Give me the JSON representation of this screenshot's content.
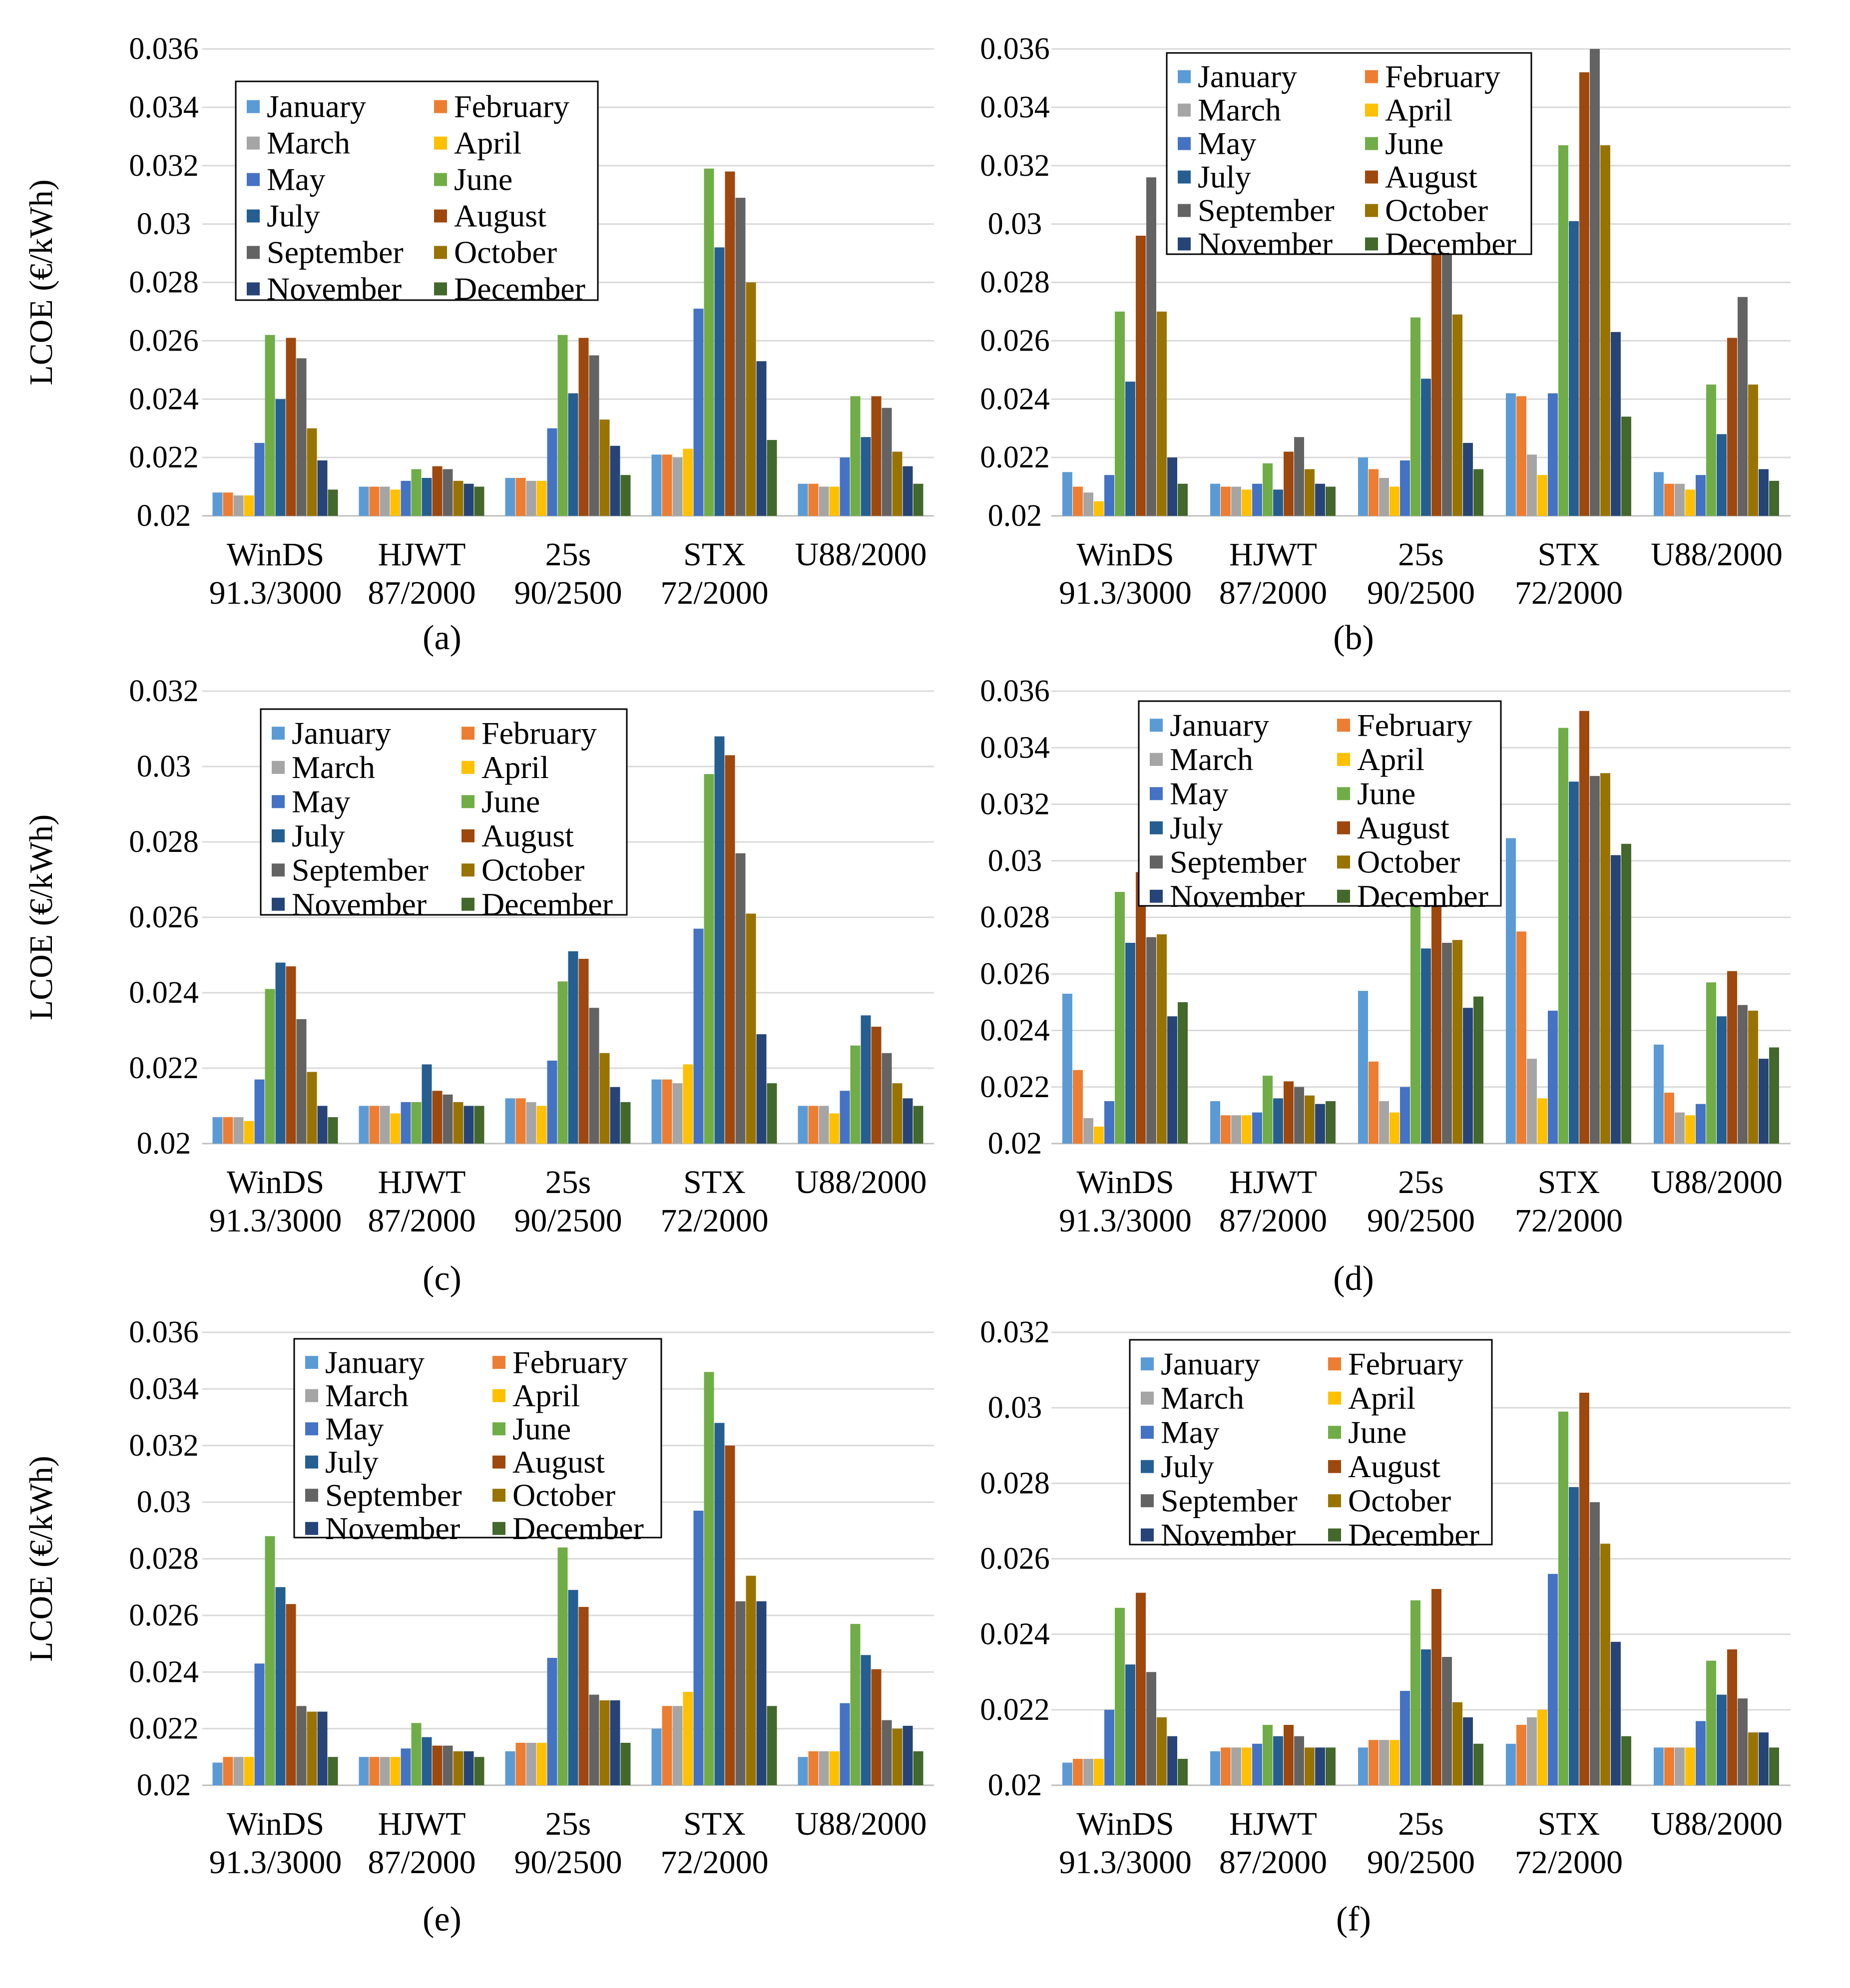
{
  "figure": {
    "y_axis_label": "LCOE (€/kWh)"
  },
  "months": [
    "January",
    "February",
    "March",
    "April",
    "May",
    "June",
    "July",
    "August",
    "September",
    "October",
    "November",
    "December"
  ],
  "month_colors": [
    "#5B9BD5",
    "#ED7D31",
    "#A5A5A5",
    "#FFC000",
    "#4472C4",
    "#70AD47",
    "#255E91",
    "#9E480E",
    "#636363",
    "#997300",
    "#264478",
    "#43682B"
  ],
  "turbines": [
    {
      "line1": "WinDS",
      "line2": "91.3/3000"
    },
    {
      "line1": "HJWT",
      "line2": "87/2000"
    },
    {
      "line1": "25s",
      "line2": "90/2500"
    },
    {
      "line1": "STX",
      "line2": "72/2000"
    },
    {
      "line1": "U88/2000",
      "line2": ""
    }
  ],
  "chart_data": [
    {
      "type": "bar",
      "panel": "(a)",
      "categories": [
        "WinDS 91.3/3000",
        "HJWT 87/2000",
        "25s 90/2500",
        "STX 72/2000",
        "U88/2000"
      ],
      "ylim": [
        0.02,
        0.036
      ],
      "yticks": [
        "0.02",
        "0.022",
        "0.024",
        "0.026",
        "0.028",
        "0.03",
        "0.032",
        "0.034",
        "0.036"
      ],
      "ylabel": "LCOE (€/kWh)",
      "series": [
        {
          "name": "January",
          "values": [
            0.0208,
            0.021,
            0.0213,
            0.0221,
            0.0211
          ]
        },
        {
          "name": "February",
          "values": [
            0.0208,
            0.021,
            0.0213,
            0.0221,
            0.0211
          ]
        },
        {
          "name": "March",
          "values": [
            0.0207,
            0.021,
            0.0212,
            0.022,
            0.021
          ]
        },
        {
          "name": "April",
          "values": [
            0.0207,
            0.0209,
            0.0212,
            0.0223,
            0.021
          ]
        },
        {
          "name": "May",
          "values": [
            0.0225,
            0.0212,
            0.023,
            0.0271,
            0.022
          ]
        },
        {
          "name": "June",
          "values": [
            0.0262,
            0.0216,
            0.0262,
            0.0319,
            0.0241
          ]
        },
        {
          "name": "July",
          "values": [
            0.024,
            0.0213,
            0.0242,
            0.0292,
            0.0227
          ]
        },
        {
          "name": "August",
          "values": [
            0.0261,
            0.0217,
            0.0261,
            0.0318,
            0.0241
          ]
        },
        {
          "name": "September",
          "values": [
            0.0254,
            0.0216,
            0.0255,
            0.0309,
            0.0237
          ]
        },
        {
          "name": "October",
          "values": [
            0.023,
            0.0212,
            0.0233,
            0.028,
            0.0222
          ]
        },
        {
          "name": "November",
          "values": [
            0.0219,
            0.0211,
            0.0224,
            0.0253,
            0.0217
          ]
        },
        {
          "name": "December",
          "values": [
            0.0209,
            0.021,
            0.0214,
            0.0226,
            0.0211
          ]
        }
      ]
    },
    {
      "type": "bar",
      "panel": "(b)",
      "categories": [
        "WinDS 91.3/3000",
        "HJWT 87/2000",
        "25s 90/2500",
        "STX 72/2000",
        "U88/2000"
      ],
      "ylim": [
        0.02,
        0.036
      ],
      "yticks": [
        "0.02",
        "0.022",
        "0.024",
        "0.026",
        "0.028",
        "0.03",
        "0.032",
        "0.034",
        "0.036"
      ],
      "ylabel": "",
      "series": [
        {
          "name": "January",
          "values": [
            0.0215,
            0.0211,
            0.022,
            0.0242,
            0.0215
          ]
        },
        {
          "name": "February",
          "values": [
            0.021,
            0.021,
            0.0216,
            0.0241,
            0.0211
          ]
        },
        {
          "name": "March",
          "values": [
            0.0208,
            0.021,
            0.0213,
            0.0221,
            0.0211
          ]
        },
        {
          "name": "April",
          "values": [
            0.0205,
            0.0209,
            0.021,
            0.0214,
            0.0209
          ]
        },
        {
          "name": "May",
          "values": [
            0.0214,
            0.0211,
            0.0219,
            0.0242,
            0.0214
          ]
        },
        {
          "name": "June",
          "values": [
            0.027,
            0.0218,
            0.0268,
            0.0327,
            0.0245
          ]
        },
        {
          "name": "July",
          "values": [
            0.0246,
            0.0209,
            0.0247,
            0.0301,
            0.0228
          ]
        },
        {
          "name": "August",
          "values": [
            0.0296,
            0.0222,
            0.0295,
            0.0352,
            0.0261
          ]
        },
        {
          "name": "September",
          "values": [
            0.0316,
            0.0227,
            0.0292,
            0.036,
            0.0275
          ]
        },
        {
          "name": "October",
          "values": [
            0.027,
            0.0216,
            0.0269,
            0.0327,
            0.0245
          ]
        },
        {
          "name": "November",
          "values": [
            0.022,
            0.0211,
            0.0225,
            0.0263,
            0.0216
          ]
        },
        {
          "name": "December",
          "values": [
            0.0211,
            0.021,
            0.0216,
            0.0234,
            0.0212
          ]
        }
      ]
    },
    {
      "type": "bar",
      "panel": "(c)",
      "categories": [
        "WinDS 91.3/3000",
        "HJWT 87/2000",
        "25s 90/2500",
        "STX 72/2000",
        "U88/2000"
      ],
      "ylim": [
        0.02,
        0.032
      ],
      "yticks": [
        "0.02",
        "0.022",
        "0.024",
        "0.026",
        "0.028",
        "0.03",
        "0.032"
      ],
      "ylabel": "LCOE (€/kWh)",
      "series": [
        {
          "name": "January",
          "values": [
            0.0207,
            0.021,
            0.0212,
            0.0217,
            0.021
          ]
        },
        {
          "name": "February",
          "values": [
            0.0207,
            0.021,
            0.0212,
            0.0217,
            0.021
          ]
        },
        {
          "name": "March",
          "values": [
            0.0207,
            0.021,
            0.0211,
            0.0216,
            0.021
          ]
        },
        {
          "name": "April",
          "values": [
            0.0206,
            0.0208,
            0.021,
            0.0221,
            0.0208
          ]
        },
        {
          "name": "May",
          "values": [
            0.0217,
            0.0211,
            0.0222,
            0.0257,
            0.0214
          ]
        },
        {
          "name": "June",
          "values": [
            0.0241,
            0.0211,
            0.0243,
            0.0298,
            0.0226
          ]
        },
        {
          "name": "July",
          "values": [
            0.0248,
            0.0221,
            0.0251,
            0.0308,
            0.0234
          ]
        },
        {
          "name": "August",
          "values": [
            0.0247,
            0.0214,
            0.0249,
            0.0303,
            0.0231
          ]
        },
        {
          "name": "September",
          "values": [
            0.0233,
            0.0213,
            0.0236,
            0.0277,
            0.0224
          ]
        },
        {
          "name": "October",
          "values": [
            0.0219,
            0.0211,
            0.0224,
            0.0261,
            0.0216
          ]
        },
        {
          "name": "November",
          "values": [
            0.021,
            0.021,
            0.0215,
            0.0229,
            0.0212
          ]
        },
        {
          "name": "December",
          "values": [
            0.0207,
            0.021,
            0.0211,
            0.0216,
            0.021
          ]
        }
      ]
    },
    {
      "type": "bar",
      "panel": "(d)",
      "categories": [
        "WinDS 91.3/3000",
        "HJWT 87/2000",
        "25s 90/2500",
        "STX 72/2000",
        "U88/2000"
      ],
      "ylim": [
        0.02,
        0.036
      ],
      "yticks": [
        "0.02",
        "0.022",
        "0.024",
        "0.026",
        "0.028",
        "0.03",
        "0.032",
        "0.034",
        "0.036"
      ],
      "ylabel": "",
      "series": [
        {
          "name": "January",
          "values": [
            0.0253,
            0.0215,
            0.0254,
            0.0308,
            0.0235
          ]
        },
        {
          "name": "February",
          "values": [
            0.0226,
            0.021,
            0.0229,
            0.0275,
            0.0218
          ]
        },
        {
          "name": "March",
          "values": [
            0.0209,
            0.021,
            0.0215,
            0.023,
            0.0211
          ]
        },
        {
          "name": "April",
          "values": [
            0.0206,
            0.021,
            0.0211,
            0.0216,
            0.021
          ]
        },
        {
          "name": "May",
          "values": [
            0.0215,
            0.0211,
            0.022,
            0.0247,
            0.0214
          ]
        },
        {
          "name": "June",
          "values": [
            0.0289,
            0.0224,
            0.029,
            0.0347,
            0.0257
          ]
        },
        {
          "name": "July",
          "values": [
            0.0271,
            0.0216,
            0.0269,
            0.0328,
            0.0245
          ]
        },
        {
          "name": "August",
          "values": [
            0.0296,
            0.0222,
            0.029,
            0.0353,
            0.0261
          ]
        },
        {
          "name": "September",
          "values": [
            0.0273,
            0.022,
            0.0271,
            0.033,
            0.0249
          ]
        },
        {
          "name": "October",
          "values": [
            0.0274,
            0.0217,
            0.0272,
            0.0331,
            0.0247
          ]
        },
        {
          "name": "November",
          "values": [
            0.0245,
            0.0214,
            0.0248,
            0.0302,
            0.023
          ]
        },
        {
          "name": "December",
          "values": [
            0.025,
            0.0215,
            0.0252,
            0.0306,
            0.0234
          ]
        }
      ]
    },
    {
      "type": "bar",
      "panel": "(e)",
      "categories": [
        "WinDS 91.3/3000",
        "HJWT 87/2000",
        "25s 90/2500",
        "STX 72/2000",
        "U88/2000"
      ],
      "ylim": [
        0.02,
        0.036
      ],
      "yticks": [
        "0.02",
        "0.022",
        "0.024",
        "0.026",
        "0.028",
        "0.03",
        "0.032",
        "0.034",
        "0.036"
      ],
      "ylabel": "LCOE (€/kWh)",
      "series": [
        {
          "name": "January",
          "values": [
            0.0208,
            0.021,
            0.0212,
            0.022,
            0.021
          ]
        },
        {
          "name": "February",
          "values": [
            0.021,
            0.021,
            0.0215,
            0.0228,
            0.0212
          ]
        },
        {
          "name": "March",
          "values": [
            0.021,
            0.021,
            0.0215,
            0.0228,
            0.0212
          ]
        },
        {
          "name": "April",
          "values": [
            0.021,
            0.021,
            0.0215,
            0.0233,
            0.0212
          ]
        },
        {
          "name": "May",
          "values": [
            0.0243,
            0.0213,
            0.0245,
            0.0297,
            0.0229
          ]
        },
        {
          "name": "June",
          "values": [
            0.0288,
            0.0222,
            0.0284,
            0.0346,
            0.0257
          ]
        },
        {
          "name": "July",
          "values": [
            0.027,
            0.0217,
            0.0269,
            0.0328,
            0.0246
          ]
        },
        {
          "name": "August",
          "values": [
            0.0264,
            0.0214,
            0.0263,
            0.032,
            0.0241
          ]
        },
        {
          "name": "September",
          "values": [
            0.0228,
            0.0214,
            0.0232,
            0.0265,
            0.0223
          ]
        },
        {
          "name": "October",
          "values": [
            0.0226,
            0.0212,
            0.023,
            0.0274,
            0.022
          ]
        },
        {
          "name": "November",
          "values": [
            0.0226,
            0.0212,
            0.023,
            0.0265,
            0.0221
          ]
        },
        {
          "name": "December",
          "values": [
            0.021,
            0.021,
            0.0215,
            0.0228,
            0.0212
          ]
        }
      ]
    },
    {
      "type": "bar",
      "panel": "(f)",
      "categories": [
        "WinDS 91.3/3000",
        "HJWT 87/2000",
        "25s 90/2500",
        "STX 72/2000",
        "U88/2000"
      ],
      "ylim": [
        0.02,
        0.032
      ],
      "yticks": [
        "0.02",
        "0.022",
        "0.024",
        "0.026",
        "0.028",
        "0.03",
        "0.032"
      ],
      "ylabel": "",
      "series": [
        {
          "name": "January",
          "values": [
            0.0206,
            0.0209,
            0.021,
            0.0211,
            0.021
          ]
        },
        {
          "name": "February",
          "values": [
            0.0207,
            0.021,
            0.0212,
            0.0216,
            0.021
          ]
        },
        {
          "name": "March",
          "values": [
            0.0207,
            0.021,
            0.0212,
            0.0218,
            0.021
          ]
        },
        {
          "name": "April",
          "values": [
            0.0207,
            0.021,
            0.0212,
            0.022,
            0.021
          ]
        },
        {
          "name": "May",
          "values": [
            0.022,
            0.0211,
            0.0225,
            0.0256,
            0.0217
          ]
        },
        {
          "name": "June",
          "values": [
            0.0247,
            0.0216,
            0.0249,
            0.0299,
            0.0233
          ]
        },
        {
          "name": "July",
          "values": [
            0.0232,
            0.0213,
            0.0236,
            0.0279,
            0.0224
          ]
        },
        {
          "name": "August",
          "values": [
            0.0251,
            0.0216,
            0.0252,
            0.0304,
            0.0236
          ]
        },
        {
          "name": "September",
          "values": [
            0.023,
            0.0213,
            0.0234,
            0.0275,
            0.0223
          ]
        },
        {
          "name": "October",
          "values": [
            0.0218,
            0.021,
            0.0222,
            0.0264,
            0.0214
          ]
        },
        {
          "name": "November",
          "values": [
            0.0213,
            0.021,
            0.0218,
            0.0238,
            0.0214
          ]
        },
        {
          "name": "December",
          "values": [
            0.0207,
            0.021,
            0.0211,
            0.0213,
            0.021
          ]
        }
      ]
    }
  ]
}
